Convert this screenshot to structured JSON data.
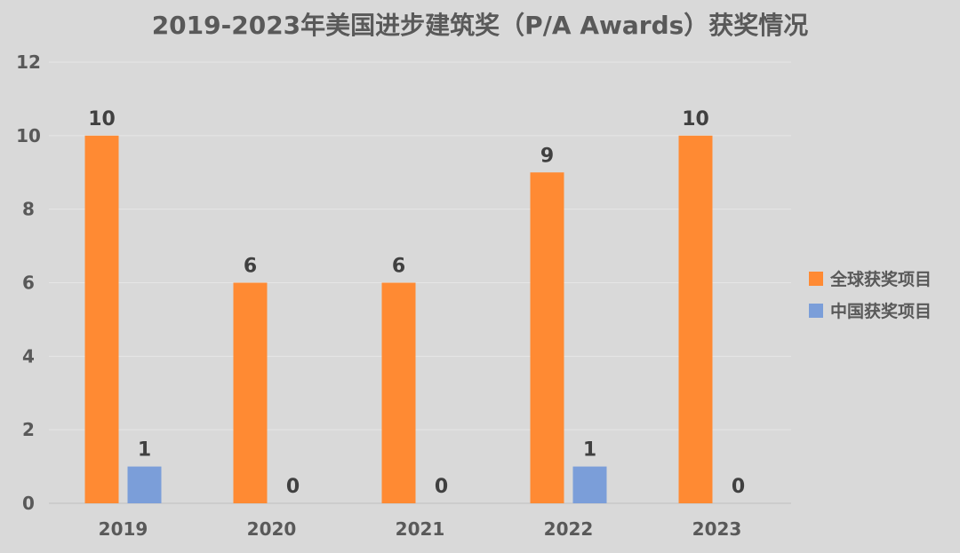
{
  "chart_data": {
    "type": "bar",
    "title": "2019-2023年美国进步建筑奖（P/A Awards）获奖情况",
    "xlabel": "",
    "ylabel": "",
    "categories": [
      "2019",
      "2020",
      "2021",
      "2022",
      "2023"
    ],
    "series": [
      {
        "name": "全球获奖项目",
        "values": [
          10,
          6,
          6,
          9,
          10
        ],
        "color": "#ff8a33"
      },
      {
        "name": "中国获奖项目",
        "values": [
          1,
          0,
          0,
          1,
          0
        ],
        "color": "#7b9ed9"
      }
    ],
    "ylim": [
      0,
      12
    ],
    "yticks": [
      0,
      2,
      4,
      6,
      8,
      10,
      12
    ],
    "grid": true,
    "legend_position": "right",
    "data_labels": true
  }
}
